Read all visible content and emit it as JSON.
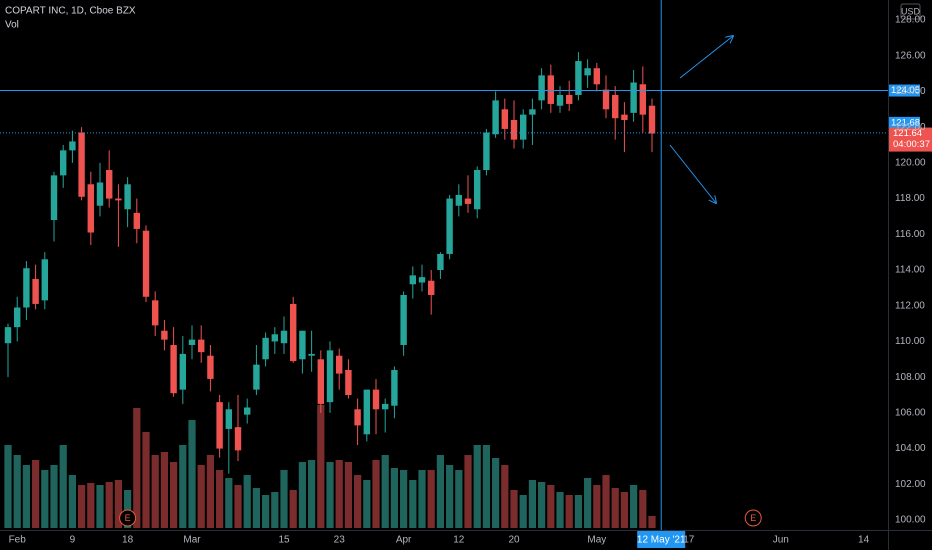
{
  "chart_data": {
    "type": "candlestick",
    "title": "COPART INC, 1D, Cboe BZX",
    "volume_label": "Vol",
    "currency": "USD",
    "up_color": "#26a69a",
    "down_color": "#ef5350",
    "volume_up_color": "#1f655e",
    "volume_down_color": "#7b2d2d",
    "background": "#000000",
    "grid": false,
    "open": [
      109.9,
      110.8,
      111.9,
      113.5,
      112.3,
      116.8,
      119.3,
      120.7,
      121.7,
      118.8,
      117.6,
      119.6,
      118.0,
      117.4,
      117.2,
      116.2,
      112.3,
      110.6,
      109.8,
      107.3,
      109.8,
      110.1,
      109.2,
      106.6,
      105.1,
      105.2,
      105.9,
      107.3,
      109.0,
      110.0,
      109.9,
      112.1,
      109.0,
      109.2,
      109.0,
      106.6,
      109.2,
      108.4,
      106.2,
      104.8,
      107.3,
      106.2,
      106.4,
      109.8,
      113.2,
      113.3,
      113.4,
      114.0,
      114.9,
      117.6,
      118.0,
      117.4,
      119.6,
      121.6,
      123.0,
      122.4,
      121.3,
      122.7,
      123.5,
      124.9,
      123.2,
      123.8,
      123.8,
      124.9,
      125.3,
      124.1,
      123.8,
      122.7,
      122.8,
      124.4,
      123.2
    ],
    "high": [
      111.0,
      112.5,
      114.5,
      114.3,
      115.0,
      119.5,
      121.0,
      121.8,
      122.0,
      119.5,
      120.0,
      120.7,
      118.8,
      119.2,
      118.0,
      116.5,
      112.8,
      111.2,
      110.8,
      110.3,
      110.9,
      110.9,
      109.8,
      107.0,
      106.6,
      107.0,
      106.8,
      109.8,
      110.5,
      110.8,
      111.4,
      112.5,
      110.6,
      110.6,
      109.5,
      110.0,
      109.6,
      109.0,
      106.8,
      107.3,
      107.9,
      106.8,
      108.6,
      112.8,
      114.2,
      114.3,
      114.0,
      115.0,
      118.2,
      118.8,
      119.3,
      119.8,
      121.9,
      124.0,
      123.6,
      123.5,
      123.0,
      123.6,
      125.3,
      125.5,
      124.3,
      124.6,
      126.2,
      125.8,
      125.6,
      124.9,
      124.3,
      123.4,
      125.2,
      125.4,
      123.6
    ],
    "low": [
      108.0,
      110.0,
      111.2,
      111.8,
      111.8,
      115.6,
      118.6,
      120.0,
      117.9,
      115.4,
      117.0,
      117.5,
      115.3,
      116.4,
      115.5,
      112.2,
      110.3,
      109.5,
      106.9,
      106.5,
      109.0,
      108.8,
      107.2,
      103.5,
      102.6,
      103.3,
      105.4,
      107.0,
      108.6,
      109.3,
      109.3,
      108.8,
      108.2,
      108.3,
      106.0,
      106.0,
      107.3,
      106.8,
      104.2,
      104.4,
      104.8,
      104.9,
      105.7,
      109.2,
      112.4,
      112.8,
      111.5,
      113.5,
      114.6,
      117.0,
      117.2,
      116.9,
      119.3,
      121.4,
      121.3,
      120.8,
      120.8,
      121.0,
      123.0,
      122.8,
      122.8,
      122.9,
      123.5,
      124.2,
      124.0,
      122.5,
      121.3,
      120.6,
      122.3,
      121.7,
      120.6
    ],
    "close": [
      110.8,
      111.9,
      114.1,
      112.1,
      114.6,
      119.3,
      120.7,
      121.2,
      118.1,
      116.1,
      118.9,
      118.0,
      117.9,
      118.8,
      116.3,
      112.5,
      110.9,
      110.1,
      107.1,
      109.3,
      110.1,
      109.4,
      107.9,
      104.0,
      106.2,
      103.9,
      106.3,
      108.7,
      110.2,
      110.4,
      110.6,
      108.9,
      110.6,
      109.3,
      106.5,
      109.5,
      108.2,
      107.0,
      105.3,
      107.3,
      106.2,
      106.5,
      108.4,
      112.6,
      113.7,
      113.6,
      112.6,
      114.9,
      118.0,
      118.2,
      117.7,
      119.6,
      121.7,
      123.5,
      121.9,
      121.3,
      122.7,
      123.0,
      124.9,
      123.3,
      123.8,
      123.3,
      125.7,
      125.3,
      124.4,
      123.0,
      122.5,
      122.4,
      124.5,
      122.7,
      121.64
    ],
    "volume": [
      1.66,
      1.46,
      1.26,
      1.36,
      1.16,
      1.26,
      1.66,
      1.06,
      0.86,
      0.9,
      0.86,
      0.92,
      0.96,
      0.76,
      2.4,
      1.92,
      1.46,
      1.52,
      1.32,
      1.66,
      2.16,
      1.26,
      1.46,
      1.16,
      1.0,
      0.86,
      1.06,
      0.8,
      0.66,
      0.72,
      1.16,
      0.76,
      1.32,
      1.36,
      2.46,
      1.32,
      1.36,
      1.32,
      1.06,
      0.96,
      1.36,
      1.46,
      1.2,
      1.16,
      0.96,
      1.16,
      1.16,
      1.46,
      1.26,
      1.16,
      1.46,
      1.66,
      1.66,
      1.4,
      1.26,
      0.76,
      0.66,
      0.96,
      0.92,
      0.86,
      0.72,
      0.66,
      0.66,
      1.0,
      0.86,
      1.06,
      0.8,
      0.72,
      0.86,
      0.76,
      0.24
    ],
    "volume_lim": [
      0,
      5
    ],
    "xlim": [
      -0.87,
      95.65
    ],
    "xticks": [
      {
        "value": 1,
        "label": "Feb"
      },
      {
        "value": 7,
        "label": "9"
      },
      {
        "value": 13,
        "label": "18"
      },
      {
        "value": 20,
        "label": "Mar"
      },
      {
        "value": 30,
        "label": "15"
      },
      {
        "value": 36,
        "label": "23"
      },
      {
        "value": 43,
        "label": "Apr"
      },
      {
        "value": 49,
        "label": "12"
      },
      {
        "value": 55,
        "label": "20"
      },
      {
        "value": 64,
        "label": "May"
      },
      {
        "value": 74,
        "label": "17"
      },
      {
        "value": 84,
        "label": "Jun"
      },
      {
        "value": 93,
        "label": "14"
      }
    ],
    "ylim": [
      99.44,
      129.12
    ],
    "yticks": [
      {
        "value": 100,
        "label": "100.00"
      },
      {
        "value": 102,
        "label": "102.00"
      },
      {
        "value": 104,
        "label": "104.00"
      },
      {
        "value": 106,
        "label": "106.00"
      },
      {
        "value": 108,
        "label": "108.00"
      },
      {
        "value": 110,
        "label": "110.00"
      },
      {
        "value": 112,
        "label": "112.00"
      },
      {
        "value": 114,
        "label": "114.00"
      },
      {
        "value": 116,
        "label": "116.00"
      },
      {
        "value": 118,
        "label": "118.00"
      },
      {
        "value": 120,
        "label": "120.00"
      },
      {
        "value": 122,
        "label": "122.00"
      },
      {
        "value": 124,
        "label": "124.00"
      },
      {
        "value": 126,
        "label": "126.00"
      },
      {
        "value": 128,
        "label": "128.00"
      }
    ],
    "hlines": [
      {
        "value": 124.05,
        "label": "124.05",
        "style": "solid"
      },
      {
        "value": 121.68,
        "label": "121.68",
        "style": "dotted"
      }
    ],
    "last_price": {
      "value": 121.64,
      "label": "121.64",
      "countdown": "04:00:37"
    },
    "crosshair": {
      "value": 71,
      "label": "12 May '21"
    },
    "events": [
      {
        "value": 13,
        "label": "E"
      },
      {
        "value": 81,
        "label": "E"
      }
    ]
  }
}
